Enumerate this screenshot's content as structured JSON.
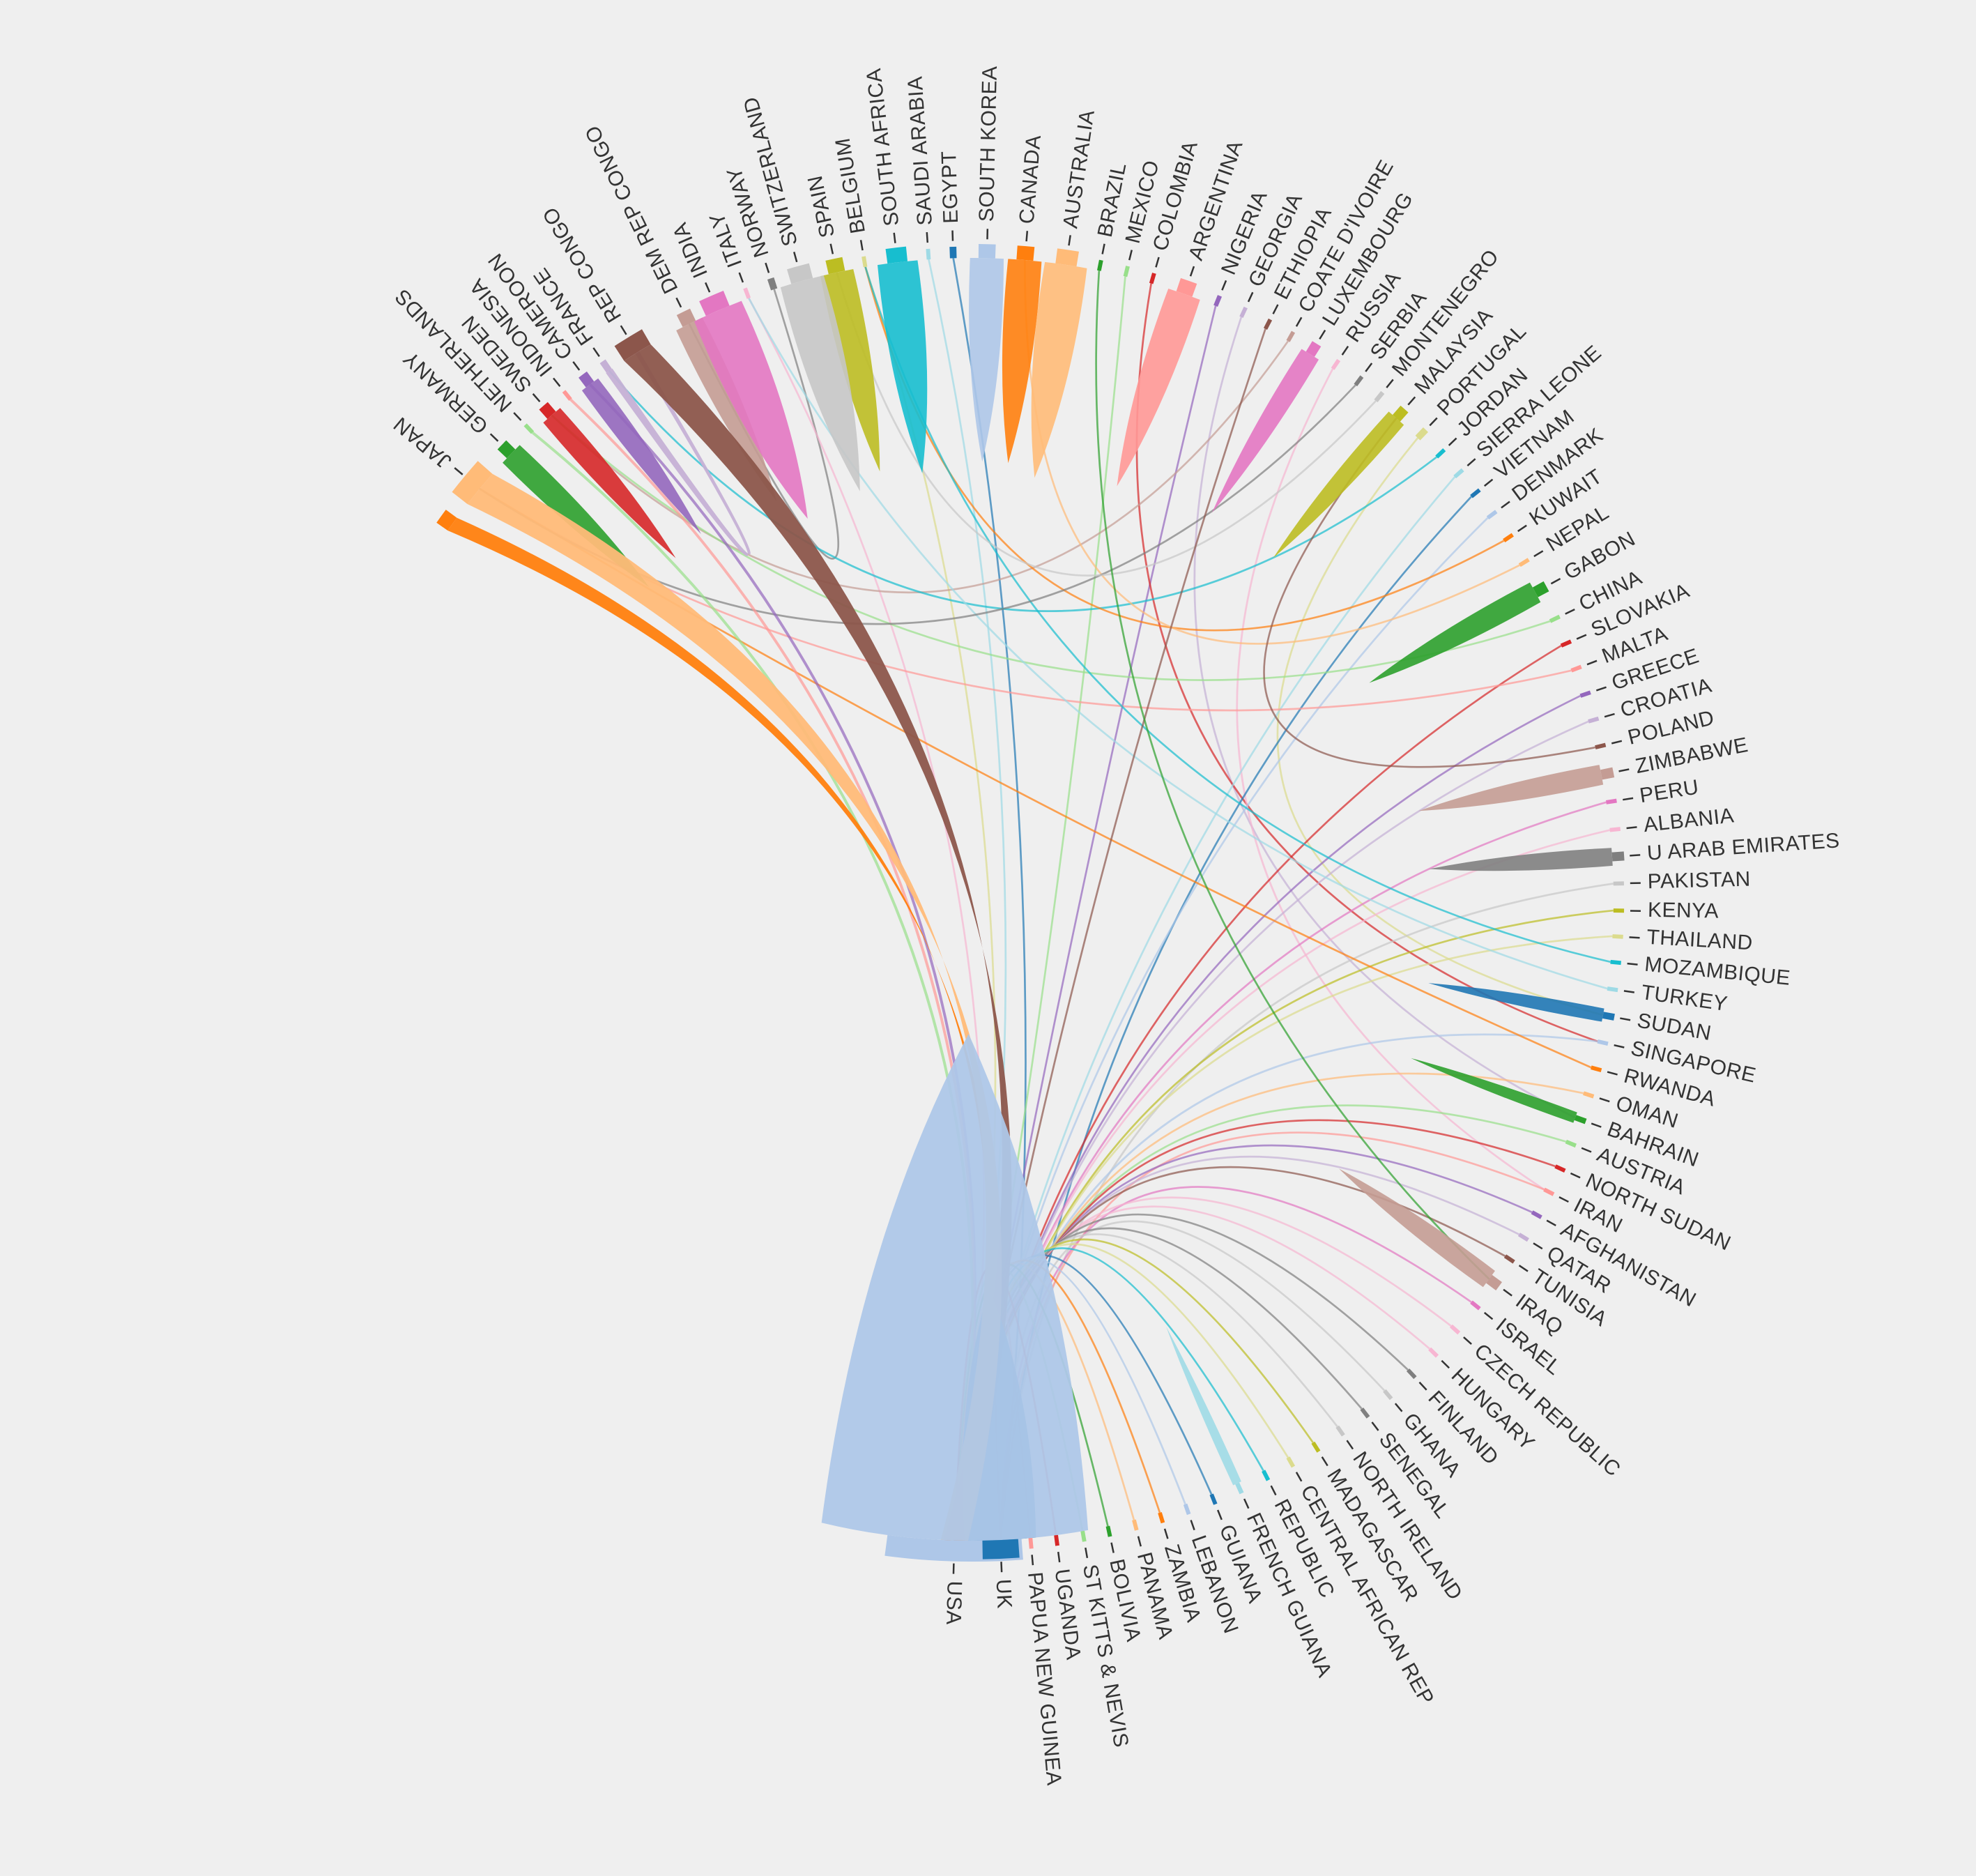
{
  "chart_data": {
    "type": "chord",
    "title": "",
    "colors": [
      "#1f77b4",
      "#aec7e8",
      "#ff7f0e",
      "#ffbb78",
      "#2ca02c",
      "#98df8a",
      "#d62728",
      "#ff9896",
      "#9467bd",
      "#c5b0d5",
      "#8c564b",
      "#c49c94",
      "#e377c2",
      "#f7b6d2",
      "#7f7f7f",
      "#c7c7c7",
      "#bcbd22",
      "#dbdb8d",
      "#17becf",
      "#9edae5"
    ],
    "nodes": [
      {
        "name": "USA",
        "color": "#aec7e8",
        "angle": 91.6,
        "width": 12
      },
      {
        "name": "UK",
        "color": "#1f77b4",
        "angle": 87.5,
        "width": 3.2
      },
      {
        "name": "PAPUA NEW GUINEA",
        "color": "#ff9896",
        "angle": 84.8,
        "width": 0.3
      },
      {
        "name": "UGANDA",
        "color": "#d62728",
        "angle": 82.5,
        "width": 0.3
      },
      {
        "name": "ST KITTS & NEVIS",
        "color": "#98df8a",
        "angle": 80.1,
        "width": 0.3
      },
      {
        "name": "BOLIVIA",
        "color": "#2ca02c",
        "angle": 77.8,
        "width": 0.3
      },
      {
        "name": "PANAMA",
        "color": "#ffbb78",
        "angle": 75.4,
        "width": 0.3
      },
      {
        "name": "ZAMBIA",
        "color": "#ff7f0e",
        "angle": 73.0,
        "width": 0.3
      },
      {
        "name": "LEBANON",
        "color": "#aec7e8",
        "angle": 70.6,
        "width": 0.3
      },
      {
        "name": "GUIANA",
        "color": "#1f77b4",
        "angle": 68.1,
        "width": 0.3
      },
      {
        "name": "FRENCH GUIANA",
        "color": "#9edae5",
        "angle": 65.6,
        "width": 0.4
      },
      {
        "name": "REPUBLIC",
        "color": "#17becf",
        "angle": 63.0,
        "width": 0.3
      },
      {
        "name": "CENTRAL AFRICAN REP",
        "color": "#dbdb8d",
        "angle": 60.5,
        "width": 0.3
      },
      {
        "name": "MADAGASCAR",
        "color": "#bcbd22",
        "angle": 57.9,
        "width": 0.3
      },
      {
        "name": "NORTH IRELAND",
        "color": "#c7c7c7",
        "angle": 55.3,
        "width": 0.3
      },
      {
        "name": "SENEGAL",
        "color": "#7f7f7f",
        "angle": 52.6,
        "width": 0.3
      },
      {
        "name": "GHANA",
        "color": "#c7c7c7",
        "angle": 50.0,
        "width": 0.3
      },
      {
        "name": "FINLAND",
        "color": "#7f7f7f",
        "angle": 47.2,
        "width": 0.3
      },
      {
        "name": "HUNGARY",
        "color": "#f7b6d2",
        "angle": 44.5,
        "width": 0.3
      },
      {
        "name": "CZECH REPUBLIC",
        "color": "#f7b6d2",
        "angle": 41.7,
        "width": 0.3
      },
      {
        "name": "ISRAEL",
        "color": "#e377c2",
        "angle": 38.9,
        "width": 0.3
      },
      {
        "name": "IRAQ",
        "color": "#c49c94",
        "angle": 36.3,
        "width": 0.9
      },
      {
        "name": "TUNISIA",
        "color": "#8c564b",
        "angle": 33.8,
        "width": 0.3
      },
      {
        "name": "QATAR",
        "color": "#c5b0d5",
        "angle": 31.5,
        "width": 0.3
      },
      {
        "name": "AFGHANISTAN",
        "color": "#9467bd",
        "angle": 29.2,
        "width": 0.3
      },
      {
        "name": "IRAN",
        "color": "#ff9896",
        "angle": 26.9,
        "width": 0.3
      },
      {
        "name": "NORTH SUDAN",
        "color": "#d62728",
        "angle": 24.6,
        "width": 0.3
      },
      {
        "name": "AUSTRIA",
        "color": "#98df8a",
        "angle": 22.2,
        "width": 0.3
      },
      {
        "name": "BAHRAIN",
        "color": "#2ca02c",
        "angle": 19.9,
        "width": 0.5
      },
      {
        "name": "OMAN",
        "color": "#ffbb78",
        "angle": 17.6,
        "width": 0.3
      },
      {
        "name": "RWANDA",
        "color": "#ff7f0e",
        "angle": 15.2,
        "width": 0.3
      },
      {
        "name": "SINGAPORE",
        "color": "#aec7e8",
        "angle": 12.8,
        "width": 0.3
      },
      {
        "name": "SUDAN",
        "color": "#1f77b4",
        "angle": 10.4,
        "width": 0.6
      },
      {
        "name": "TURKEY",
        "color": "#9edae5",
        "angle": 8.0,
        "width": 0.3
      },
      {
        "name": "MOZAMBIQUE",
        "color": "#17becf",
        "angle": 5.6,
        "width": 0.3
      },
      {
        "name": "THAILAND",
        "color": "#dbdb8d",
        "angle": 3.3,
        "width": 0.3
      },
      {
        "name": "KENYA",
        "color": "#bcbd22",
        "angle": 1.0,
        "width": 0.3
      },
      {
        "name": "PAKISTAN",
        "color": "#c7c7c7",
        "angle": -1.4,
        "width": 0.3
      },
      {
        "name": "U ARAB EMIRATES",
        "color": "#7f7f7f",
        "angle": -3.8,
        "width": 0.8
      },
      {
        "name": "ALBANIA",
        "color": "#f7b6d2",
        "angle": -6.2,
        "width": 0.3
      },
      {
        "name": "PERU",
        "color": "#e377c2",
        "angle": -8.7,
        "width": 0.3
      },
      {
        "name": "ZIMBABWE",
        "color": "#c49c94",
        "angle": -11.2,
        "width": 0.9
      },
      {
        "name": "POLAND",
        "color": "#8c564b",
        "angle": -13.7,
        "width": 0.3
      },
      {
        "name": "CROATIA",
        "color": "#c5b0d5",
        "angle": -16.1,
        "width": 0.3
      },
      {
        "name": "GREECE",
        "color": "#9467bd",
        "angle": -18.5,
        "width": 0.3
      },
      {
        "name": "MALTA",
        "color": "#ff9896",
        "angle": -20.9,
        "width": 0.3
      },
      {
        "name": "SLOVAKIA",
        "color": "#d62728",
        "angle": -23.3,
        "width": 0.3
      },
      {
        "name": "CHINA",
        "color": "#98df8a",
        "angle": -25.7,
        "width": 0.3
      },
      {
        "name": "GABON",
        "color": "#2ca02c",
        "angle": -28.6,
        "width": 1.0
      },
      {
        "name": "NEPAL",
        "color": "#ffbb78",
        "angle": -31.4,
        "width": 0.3
      },
      {
        "name": "KUWAIT",
        "color": "#ff7f0e",
        "angle": -34.0,
        "width": 0.3
      },
      {
        "name": "DENMARK",
        "color": "#aec7e8",
        "angle": -36.5,
        "width": 0.3
      },
      {
        "name": "VIETNAM",
        "color": "#1f77b4",
        "angle": -38.9,
        "width": 0.3
      },
      {
        "name": "SIERRA LEONE",
        "color": "#9edae5",
        "angle": -41.2,
        "width": 0.3
      },
      {
        "name": "JORDAN",
        "color": "#17becf",
        "angle": -43.6,
        "width": 0.3
      },
      {
        "name": "PORTUGAL",
        "color": "#dbdb8d",
        "angle": -46.0,
        "width": 0.6
      },
      {
        "name": "MALAYSIA",
        "color": "#bcbd22",
        "angle": -48.6,
        "width": 0.9
      },
      {
        "name": "MONTENEGRO",
        "color": "#c7c7c7",
        "angle": -51.0,
        "width": 0.4
      },
      {
        "name": "SERBIA",
        "color": "#7f7f7f",
        "angle": -53.3,
        "width": 0.3
      },
      {
        "name": "RUSSIA",
        "color": "#f7b6d2",
        "angle": -55.8,
        "width": 0.3
      },
      {
        "name": "LUXEMBOURG",
        "color": "#e377c2",
        "angle": -58.2,
        "width": 0.9
      },
      {
        "name": "COATE D'IVOIRE",
        "color": "#c49c94",
        "angle": -60.5,
        "width": 0.3
      },
      {
        "name": "ETHIOPIA",
        "color": "#8c564b",
        "angle": -62.8,
        "width": 0.3
      },
      {
        "name": "GEORGIA",
        "color": "#c5b0d5",
        "angle": -65.2,
        "width": 0.3
      },
      {
        "name": "NIGERIA",
        "color": "#9467bd",
        "angle": -67.7,
        "width": 0.4
      },
      {
        "name": "ARGENTINA",
        "color": "#ff9896",
        "angle": -70.7,
        "width": 1.5
      },
      {
        "name": "COLOMBIA",
        "color": "#d62728",
        "angle": -73.8,
        "width": 0.3
      },
      {
        "name": "MEXICO",
        "color": "#98df8a",
        "angle": -76.2,
        "width": 0.3
      },
      {
        "name": "BRAZIL",
        "color": "#2ca02c",
        "angle": -78.6,
        "width": 0.3
      },
      {
        "name": "AUSTRALIA",
        "color": "#ffbb78",
        "angle": -81.6,
        "width": 1.9
      },
      {
        "name": "CANADA",
        "color": "#ff7f0e",
        "angle": -85.3,
        "width": 1.5
      },
      {
        "name": "SOUTH KOREA",
        "color": "#aec7e8",
        "angle": -88.7,
        "width": 1.5
      },
      {
        "name": "EGYPT",
        "color": "#1f77b4",
        "angle": -91.7,
        "width": 0.6
      },
      {
        "name": "SAUDI ARABIA",
        "color": "#9edae5",
        "angle": -93.9,
        "width": 0.3
      },
      {
        "name": "SOUTH AFRICA",
        "color": "#17becf",
        "angle": -96.7,
        "width": 1.8
      },
      {
        "name": "BELGIUM",
        "color": "#dbdb8d",
        "angle": -99.6,
        "width": 0.3
      },
      {
        "name": "SPAIN",
        "color": "#bcbd22",
        "angle": -102.2,
        "width": 1.5
      },
      {
        "name": "SWITZERLAND",
        "color": "#c7c7c7",
        "angle": -105.4,
        "width": 2.0
      },
      {
        "name": "NORWAY",
        "color": "#7f7f7f",
        "angle": -108.0,
        "width": 0.6
      },
      {
        "name": "ITALY",
        "color": "#f7b6d2",
        "angle": -110.4,
        "width": 0.3
      },
      {
        "name": "INDIA",
        "color": "#e377c2",
        "angle": -113.4,
        "width": 2.3
      },
      {
        "name": "DEM REP CONGO",
        "color": "#c49c94",
        "angle": -116.2,
        "width": 1.3
      },
      {
        "name": "REP CONGO",
        "color": "#8c564b",
        "angle": -121.5,
        "width": 2.8
      },
      {
        "name": "FRANCE",
        "color": "#c5b0d5",
        "angle": -124.5,
        "width": 0.6
      },
      {
        "name": "CAMEROON",
        "color": "#9467bd",
        "angle": -126.6,
        "width": 0.9
      },
      {
        "name": "INDONESIA",
        "color": "#ff9896",
        "angle": -128.8,
        "width": 0.3
      },
      {
        "name": "SWEDEN",
        "color": "#d62728",
        "angle": -131.0,
        "width": 1.0
      },
      {
        "name": "NETHERLANDS",
        "color": "#98df8a",
        "angle": -133.3,
        "width": 0.3
      },
      {
        "name": "GERMANY",
        "color": "#2ca02c",
        "angle": -136.0,
        "width": 1.1
      },
      {
        "name": "JAPAN",
        "color": "#ffbb78",
        "angle": -140.2,
        "width": 3.5
      },
      {
        "name": "",
        "color": "#ff7f0e",
        "angle": -144.2,
        "width": 1.4
      }
    ],
    "links": [
      {
        "source": "USA",
        "target": "USA",
        "value": 12
      },
      {
        "source": "REP CONGO",
        "target": "USA",
        "value": 2.8
      },
      {
        "source": "JAPAN",
        "target": "USA",
        "value": 3.5
      },
      {
        "source": "UK",
        "target": "UK",
        "value": 3.2
      },
      {
        "source": "ARGENTINA",
        "target": "ARGENTINA",
        "value": 1.5
      },
      {
        "source": "AUSTRALIA",
        "target": "AUSTRALIA",
        "value": 1.9
      },
      {
        "source": "CANADA",
        "target": "CANADA",
        "value": 1.5
      },
      {
        "source": "SOUTH KOREA",
        "target": "SOUTH KOREA",
        "value": 1.5
      },
      {
        "source": "SOUTH AFRICA",
        "target": "SOUTH AFRICA",
        "value": 1.8
      },
      {
        "source": "SWITZERLAND",
        "target": "SWITZERLAND",
        "value": 2.0
      },
      {
        "source": "INDIA",
        "target": "INDIA",
        "value": 2.3
      },
      {
        "source": "DEM REP CONGO",
        "target": "DEM REP CONGO",
        "value": 1.3
      },
      {
        "source": "SPAIN",
        "target": "SPAIN",
        "value": 1.5
      },
      {
        "source": "SWEDEN",
        "target": "SWEDEN",
        "value": 1.0
      },
      {
        "source": "GERMANY",
        "target": "GERMANY",
        "value": 1.1
      },
      {
        "source": "CAMEROON",
        "target": "CAMEROON",
        "value": 0.9
      },
      {
        "source": "GABON",
        "target": "GABON",
        "value": 1.0
      },
      {
        "source": "LUXEMBOURG",
        "target": "LUXEMBOURG",
        "value": 0.9
      },
      {
        "source": "MALAYSIA",
        "target": "MALAYSIA",
        "value": 0.9
      },
      {
        "source": "ZIMBABWE",
        "target": "ZIMBABWE",
        "value": 0.9
      },
      {
        "source": "U ARAB EMIRATES",
        "target": "U ARAB EMIRATES",
        "value": 0.8
      },
      {
        "source": "IRAQ",
        "target": "IRAQ",
        "value": 0.9
      },
      {
        "source": "SUDAN",
        "target": "SUDAN",
        "value": 0.6
      },
      {
        "source": "BAHRAIN",
        "target": "BAHRAIN",
        "value": 0.5
      },
      {
        "source": "FRENCH GUIANA",
        "target": "FRENCH GUIANA",
        "value": 0.4
      },
      {
        "source": "",
        "target": "USA",
        "value": 1.4
      },
      {
        "source": "FRANCE",
        "target": "REP CONGO",
        "value": 0.3
      },
      {
        "source": "CAMEROON",
        "target": "USA",
        "value": 0.2
      },
      {
        "source": "INDONESIA",
        "target": "USA",
        "value": 0.2
      },
      {
        "source": "NETHERLANDS",
        "target": "USA",
        "value": 0.2
      },
      {
        "source": "EGYPT",
        "target": "UK",
        "value": 0.1
      },
      {
        "source": "NIGERIA",
        "target": "USA",
        "value": 0.1
      },
      {
        "source": "GEORGIA",
        "target": "BAHRAIN",
        "value": 0.1
      },
      {
        "source": "NORWAY",
        "target": "DEM REP CONGO",
        "value": 0.1
      },
      {
        "source": "ITALY",
        "target": "USA",
        "value": 0.1
      },
      {
        "source": "BELGIUM",
        "target": "USA",
        "value": 0.1
      },
      {
        "source": "SAUDI ARABIA",
        "target": "USA",
        "value": 0.1
      },
      {
        "source": "MEXICO",
        "target": "USA",
        "value": 0.1
      },
      {
        "source": "COLOMBIA",
        "target": "SINGAPORE",
        "value": 0.1
      },
      {
        "source": "COATE D'IVOIRE",
        "target": "SWEDEN",
        "value": 0.1
      },
      {
        "source": "RUSSIA",
        "target": "IRAN",
        "value": 0.1
      },
      {
        "source": "PORTUGAL",
        "target": "SUDAN",
        "value": 0.1
      },
      {
        "source": "JORDAN",
        "target": "FRANCE",
        "value": 0.1
      },
      {
        "source": "SIERRA LEONE",
        "target": "USA",
        "value": 0.1
      },
      {
        "source": "VIETNAM",
        "target": "UK",
        "value": 0.1
      },
      {
        "source": "DENMARK",
        "target": "USA",
        "value": 0.1
      },
      {
        "source": "KUWAIT",
        "target": "BELGIUM",
        "value": 0.1
      },
      {
        "source": "NEPAL",
        "target": "CANADA",
        "value": 0.1
      },
      {
        "source": "CHINA",
        "target": "SWEDEN",
        "value": 0.1
      },
      {
        "source": "SLOVAKIA",
        "target": "USA",
        "value": 0.1
      },
      {
        "source": "MALTA",
        "target": "JAPAN",
        "value": 0.1
      },
      {
        "source": "GREECE",
        "target": "USA",
        "value": 0.1
      },
      {
        "source": "CROATIA",
        "target": "USA",
        "value": 0.1
      },
      {
        "source": "POLAND",
        "target": "MALAYSIA",
        "value": 0.1
      },
      {
        "source": "PERU",
        "target": "USA",
        "value": 0.1
      },
      {
        "source": "ALBANIA",
        "target": "USA",
        "value": 0.1
      },
      {
        "source": "PAKISTAN",
        "target": "UK",
        "value": 0.1
      },
      {
        "source": "KENYA",
        "target": "USA",
        "value": 0.1
      },
      {
        "source": "THAILAND",
        "target": "USA",
        "value": 0.1
      },
      {
        "source": "MOZAMBIQUE",
        "target": "BELGIUM",
        "value": 0.1
      },
      {
        "source": "TURKEY",
        "target": "ITALY",
        "value": 0.1
      },
      {
        "source": "SINGAPORE",
        "target": "USA",
        "value": 0.1
      },
      {
        "source": "RWANDA",
        "target": "JAPAN",
        "value": 0.1
      },
      {
        "source": "OMAN",
        "target": "USA",
        "value": 0.1
      },
      {
        "source": "AUSTRIA",
        "target": "USA",
        "value": 0.1
      },
      {
        "source": "NORTH SUDAN",
        "target": "USA",
        "value": 0.1
      },
      {
        "source": "IRAN",
        "target": "UK",
        "value": 0.1
      },
      {
        "source": "AFGHANISTAN",
        "target": "USA",
        "value": 0.1
      },
      {
        "source": "QATAR",
        "target": "USA",
        "value": 0.1
      },
      {
        "source": "TUNISIA",
        "target": "USA",
        "value": 0.1
      },
      {
        "source": "ISRAEL",
        "target": "UK",
        "value": 0.1
      },
      {
        "source": "CZECH REPUBLIC",
        "target": "USA",
        "value": 0.1
      },
      {
        "source": "HUNGARY",
        "target": "USA",
        "value": 0.1
      },
      {
        "source": "FINLAND",
        "target": "USA",
        "value": 0.1
      },
      {
        "source": "GHANA",
        "target": "UK",
        "value": 0.1
      },
      {
        "source": "SENEGAL",
        "target": "USA",
        "value": 0.1
      },
      {
        "source": "NORTH IRELAND",
        "target": "USA",
        "value": 0.1
      },
      {
        "source": "MADAGASCAR",
        "target": "USA",
        "value": 0.1
      },
      {
        "source": "CENTRAL AFRICAN REP",
        "target": "USA",
        "value": 0.1
      },
      {
        "source": "REPUBLIC",
        "target": "USA",
        "value": 0.1
      },
      {
        "source": "GUIANA",
        "target": "USA",
        "value": 0.1
      },
      {
        "source": "LEBANON",
        "target": "USA",
        "value": 0.1
      },
      {
        "source": "ZAMBIA",
        "target": "USA",
        "value": 0.1
      },
      {
        "source": "PANAMA",
        "target": "USA",
        "value": 0.1
      },
      {
        "source": "BOLIVIA",
        "target": "USA",
        "value": 0.1
      },
      {
        "source": "ST KITTS & NEVIS",
        "target": "USA",
        "value": 0.1
      },
      {
        "source": "UGANDA",
        "target": "USA",
        "value": 0.1
      },
      {
        "source": "PAPUA NEW GUINEA",
        "target": "UK",
        "value": 0.1
      },
      {
        "source": "SERBIA",
        "target": "JAPAN",
        "value": 0.1
      },
      {
        "source": "MONTENEGRO",
        "target": "SPAIN",
        "value": 0.1
      },
      {
        "source": "ETHIOPIA",
        "target": "USA",
        "value": 0.1
      },
      {
        "source": "BRAZIL",
        "target": "IRAQ",
        "value": 0.1
      }
    ]
  }
}
